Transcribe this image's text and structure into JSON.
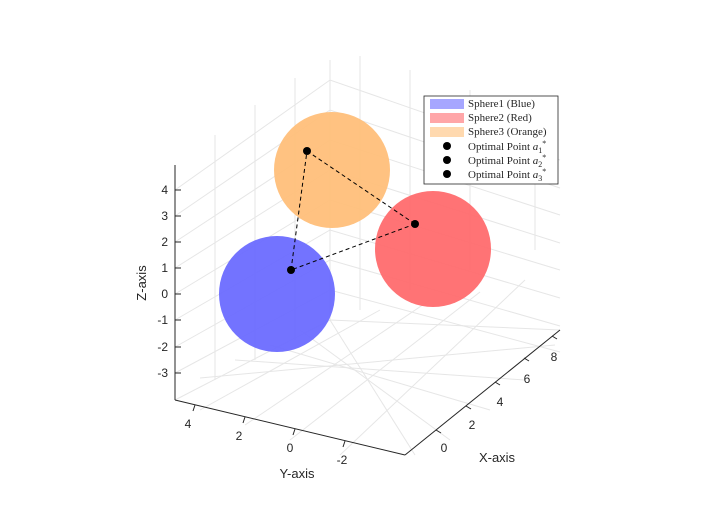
{
  "chart_data": {
    "type": "scatter3d",
    "title": "",
    "xlabel": "X-axis",
    "ylabel": "Y-axis",
    "zlabel": "Z-axis",
    "grid": true,
    "legend_position": "top-right",
    "x_ticks": [
      "0",
      "2",
      "4",
      "6",
      "8"
    ],
    "y_ticks": [
      "4",
      "2",
      "0",
      "-2"
    ],
    "z_ticks": [
      "4",
      "3",
      "2",
      "1",
      "0",
      "-1",
      "-2",
      "-3"
    ],
    "spheres": [
      {
        "name": "Sphere1 (Blue)",
        "color": "#6b6bff"
      },
      {
        "name": "Sphere2 (Red)",
        "color": "#ff6b6e"
      },
      {
        "name": "Sphere3 (Orange)",
        "color": "#ffbf7a"
      }
    ],
    "optimal_points": [
      {
        "name": "Optimal Point a1*",
        "label_base": "Optimal Point ",
        "label_var": "a",
        "label_sub": "1",
        "label_sup": "*",
        "color": "#000000"
      },
      {
        "name": "Optimal Point a2*",
        "label_base": "Optimal Point ",
        "label_var": "a",
        "label_sub": "2",
        "label_sup": "*",
        "color": "#000000"
      },
      {
        "name": "Optimal Point a3*",
        "label_base": "Optimal Point ",
        "label_var": "a",
        "label_sub": "3",
        "label_sup": "*",
        "color": "#000000"
      }
    ],
    "connections": "dashed triangle between optimal points"
  }
}
